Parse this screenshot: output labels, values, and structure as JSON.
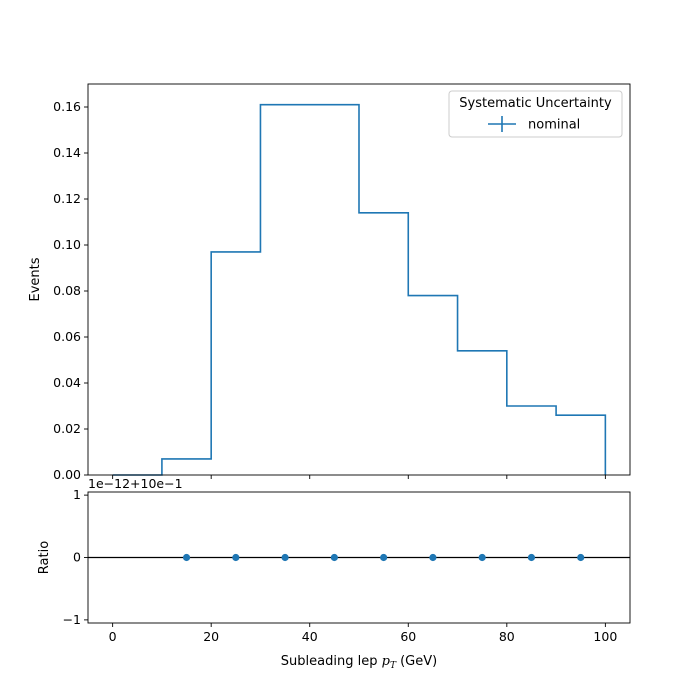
{
  "chart_data": [
    {
      "type": "step-histogram",
      "ylabel": "Events",
      "xlim": [
        -5,
        105
      ],
      "ylim": [
        0,
        0.17
      ],
      "x_ticks": [
        "0",
        "20",
        "40",
        "60",
        "80",
        "100"
      ],
      "y_ticks": [
        "0.00",
        "0.02",
        "0.04",
        "0.06",
        "0.08",
        "0.10",
        "0.12",
        "0.14",
        "0.16"
      ],
      "bin_edges": [
        0,
        10,
        20,
        30,
        40,
        50,
        60,
        70,
        80,
        90,
        100
      ],
      "series": [
        {
          "name": "nominal",
          "color": "#1f77b4",
          "values": [
            0.0,
            0.007,
            0.097,
            0.161,
            0.161,
            0.114,
            0.078,
            0.054,
            0.03,
            0.026
          ]
        }
      ],
      "legend": {
        "title": "Systematic Uncertainty",
        "position": "top-right"
      },
      "grid": false
    },
    {
      "type": "scatter",
      "ylabel": "Ratio",
      "xlabel_prefix": "Subleading lep ",
      "xlabel_math": "p",
      "xlabel_sub": "T",
      "xlabel_suffix": " (GeV)",
      "offset_text": "1e−12+10e−1",
      "xlim": [
        -5,
        105
      ],
      "ylim": [
        -1.05,
        1.05
      ],
      "x_ticks": [
        "0",
        "20",
        "40",
        "60",
        "80",
        "100"
      ],
      "y_ticks": [
        "−1",
        "0",
        "1"
      ],
      "x": [
        15,
        25,
        35,
        45,
        55,
        65,
        75,
        85,
        95
      ],
      "y": [
        0,
        0,
        0,
        0,
        0,
        0,
        0,
        0,
        0
      ],
      "reference_line": 0,
      "color": "#1f77b4",
      "grid": false
    }
  ]
}
